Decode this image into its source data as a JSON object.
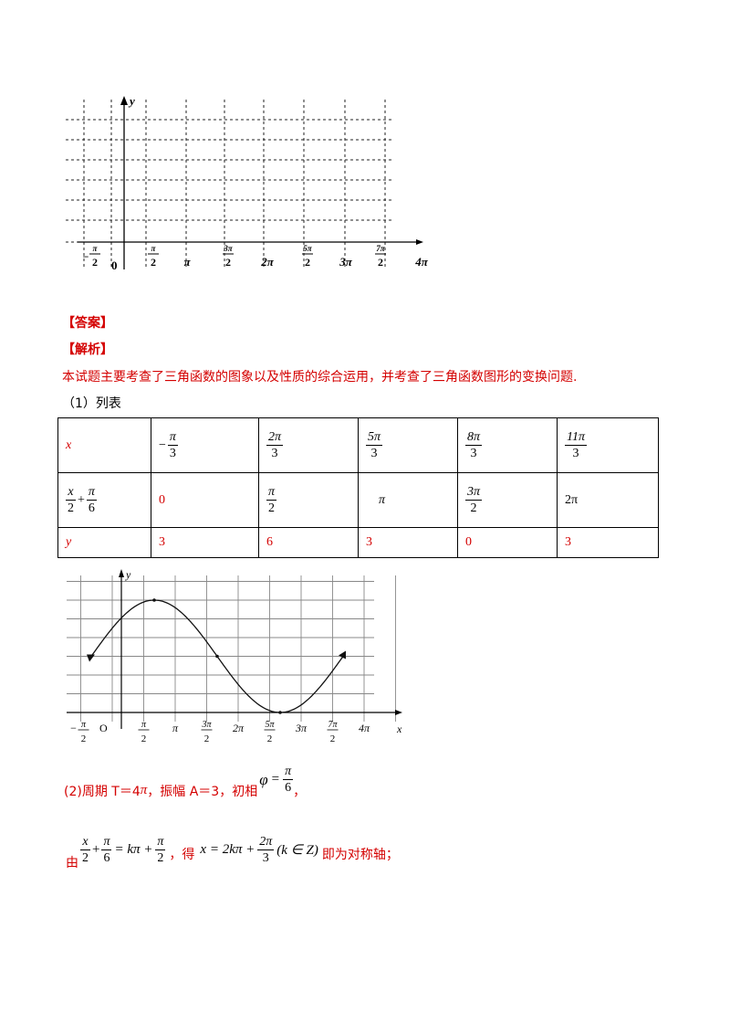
{
  "top_grid": {
    "y_label": "y",
    "origin_label": "0",
    "ticks": [
      {
        "num": "π",
        "den": "2",
        "neg": true
      },
      {
        "num": "π",
        "den": "2"
      },
      {
        "text": "π"
      },
      {
        "num": "3π",
        "den": "2"
      },
      {
        "text": "2π"
      },
      {
        "num": "5π",
        "den": "2"
      },
      {
        "text": "3π"
      },
      {
        "num": "7π",
        "den": "2"
      },
      {
        "text": "4π"
      }
    ]
  },
  "answer_label": "【答案】",
  "analysis_label": "【解析】",
  "intro": "本试题主要考查了三角函数的图象以及性质的综合运用，并考查了三角函数图形的变换问题.",
  "part1": "（1）列表",
  "table": {
    "x_label": "x",
    "x_values": [
      {
        "sign": "−",
        "num": "π",
        "den": "3"
      },
      {
        "num": "2π",
        "den": "3"
      },
      {
        "num": "5π",
        "den": "3"
      },
      {
        "num": "8π",
        "den": "3"
      },
      {
        "num": "11π",
        "den": "3"
      }
    ],
    "arg_label": {
      "a_num": "x",
      "a_den": "2",
      "plus": "+",
      "b_num": "π",
      "b_den": "6"
    },
    "arg_values": [
      {
        "text": "0"
      },
      {
        "num": "π",
        "den": "2"
      },
      {
        "text": "π"
      },
      {
        "num": "3π",
        "den": "2"
      },
      {
        "text": "2π"
      }
    ],
    "y_label": "y",
    "y_values": [
      "3",
      "6",
      "3",
      "0",
      "3"
    ]
  },
  "chart_data": {
    "type": "line",
    "title": "",
    "xlabel": "x",
    "ylabel": "y",
    "origin_label": "O",
    "x_tick_labels": [
      "−π/2",
      "O",
      "π/2",
      "π",
      "3π/2",
      "2π",
      "5π/2",
      "3π",
      "7π/2",
      "4π"
    ],
    "xlim": [
      -0.5,
      4.5
    ],
    "ylim": [
      0,
      7
    ],
    "series": [
      {
        "x": [
          -0.3333,
          0.6667,
          1.6667,
          2.6667,
          3.6667
        ],
        "y": [
          3,
          6,
          3,
          0,
          3
        ]
      }
    ],
    "grid": true
  },
  "part2": {
    "prefix": "(2)周期 T＝4",
    "pi": "π",
    "mid": "，振幅 A＝3，初相",
    "phi": "φ",
    "eq": "=",
    "phi_num": "π",
    "phi_den": "6",
    "suffix": "，"
  },
  "part3": {
    "you": "由",
    "a_num": "x",
    "a_den": "2",
    "plus": "+",
    "b_num": "π",
    "b_den": "6",
    "eq_rest": "= kπ +",
    "c_num": "π",
    "c_den": "2",
    "de": "，得",
    "x_eq": "x = 2kπ +",
    "d_num": "2π",
    "d_den": "3",
    "cond": "(k ∈ Z)",
    "tail": "即为对称轴；"
  }
}
